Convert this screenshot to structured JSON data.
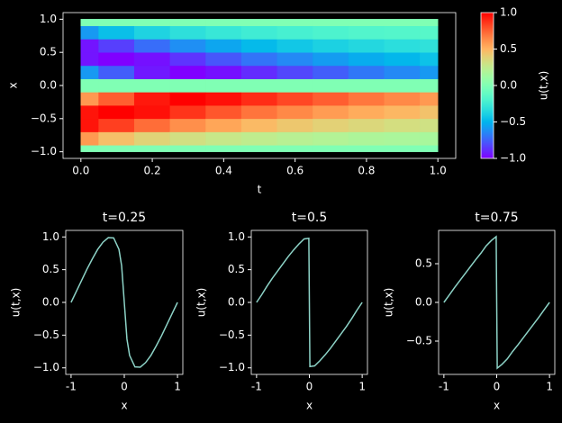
{
  "chart_data": [
    {
      "type": "heatmap",
      "xlabel": "t",
      "ylabel": "x",
      "colormap": "rainbow",
      "x": [
        0,
        0.1,
        0.2,
        0.3,
        0.4,
        0.5,
        0.6,
        0.7,
        0.8,
        0.9,
        1.0
      ],
      "y": [
        -1,
        -0.8,
        -0.6,
        -0.4,
        -0.2,
        0,
        0.2,
        0.4,
        0.6,
        0.8,
        1
      ],
      "values": [
        [
          0,
          0.59,
          0.95,
          0.95,
          0.59,
          0,
          -0.59,
          -0.95,
          -0.95,
          -0.59,
          0
        ],
        [
          0,
          0.46,
          0.84,
          1,
          0.76,
          0,
          -0.76,
          -1,
          -0.84,
          -0.46,
          0
        ],
        [
          0,
          0.38,
          0.72,
          0.96,
          0.94,
          0,
          -0.94,
          -0.96,
          -0.72,
          -0.38,
          0
        ],
        [
          0,
          0.32,
          0.62,
          0.87,
          1,
          0,
          -1,
          -0.87,
          -0.62,
          -0.32,
          0
        ],
        [
          0,
          0.28,
          0.55,
          0.78,
          0.96,
          0,
          -0.96,
          -0.78,
          -0.55,
          -0.28,
          0
        ],
        [
          0,
          0.25,
          0.48,
          0.7,
          0.89,
          0,
          -0.89,
          -0.7,
          -0.48,
          -0.25,
          0
        ],
        [
          0,
          0.22,
          0.43,
          0.64,
          0.82,
          0,
          -0.82,
          -0.64,
          -0.43,
          -0.22,
          0
        ],
        [
          0,
          0.2,
          0.39,
          0.58,
          0.76,
          0,
          -0.76,
          -0.58,
          -0.39,
          -0.2,
          0
        ],
        [
          0,
          0.18,
          0.36,
          0.53,
          0.69,
          0,
          -0.69,
          -0.53,
          -0.36,
          -0.18,
          0
        ],
        [
          0,
          0.17,
          0.33,
          0.49,
          0.64,
          0,
          -0.64,
          -0.49,
          -0.33,
          -0.17,
          0
        ],
        [
          0,
          0.16,
          0.31,
          0.45,
          0.59,
          0,
          -0.59,
          -0.45,
          -0.31,
          -0.16,
          0
        ]
      ],
      "xlim": [
        -0.05,
        1.05
      ],
      "xticks": [
        {
          "value": 0,
          "label": "0.0"
        },
        {
          "value": 0.2,
          "label": "0.2"
        },
        {
          "value": 0.4,
          "label": "0.4"
        },
        {
          "value": 0.6,
          "label": "0.6"
        },
        {
          "value": 0.8,
          "label": "0.8"
        },
        {
          "value": 1,
          "label": "1.0"
        }
      ],
      "ylim": [
        -1.1,
        1.1
      ],
      "yticks": [
        {
          "value": -1,
          "label": "−1.0"
        },
        {
          "value": -0.5,
          "label": "−0.5"
        },
        {
          "value": 0,
          "label": "0.0"
        },
        {
          "value": 0.5,
          "label": "0.5"
        },
        {
          "value": 1,
          "label": "1.0"
        }
      ],
      "colorbar": {
        "label": "u(t,x)",
        "lim": [
          -1,
          1
        ],
        "ticks": [
          {
            "value": -1,
            "label": "−1.0"
          },
          {
            "value": -0.5,
            "label": "−0.5"
          },
          {
            "value": 0,
            "label": "0.0"
          },
          {
            "value": 0.5,
            "label": "0.5"
          },
          {
            "value": 1,
            "label": "1.0"
          }
        ]
      }
    },
    {
      "type": "line",
      "title": "t=0.25",
      "xlabel": "x",
      "ylabel": "u(t,x)",
      "color": "#8dd3c7",
      "x": [
        -1,
        -0.9,
        -0.8,
        -0.7,
        -0.6,
        -0.5,
        -0.4,
        -0.3,
        -0.2,
        -0.1,
        -0.05,
        0,
        0.05,
        0.1,
        0.2,
        0.3,
        0.4,
        0.5,
        0.6,
        0.7,
        0.8,
        0.9,
        1
      ],
      "values": [
        0,
        0.17,
        0.34,
        0.51,
        0.665,
        0.81,
        0.92,
        0.99,
        0.985,
        0.81,
        0.56,
        0,
        -0.56,
        -0.81,
        -0.985,
        -0.99,
        -0.92,
        -0.81,
        -0.665,
        -0.51,
        -0.34,
        -0.17,
        0
      ],
      "xlim": [
        -1.1,
        1.1
      ],
      "xticks": [
        -1,
        0,
        1
      ],
      "ylim": [
        -1.1,
        1.1
      ],
      "yticks": [
        {
          "value": -1,
          "label": "−1.0"
        },
        {
          "value": -0.5,
          "label": "−0.5"
        },
        {
          "value": 0,
          "label": "0.0"
        },
        {
          "value": 0.5,
          "label": "0.5"
        },
        {
          "value": 1,
          "label": "1.0"
        }
      ]
    },
    {
      "type": "line",
      "title": "t=0.5",
      "xlabel": "x",
      "ylabel": "u(t,x)",
      "color": "#8dd3c7",
      "x": [
        -1,
        -0.9,
        -0.8,
        -0.7,
        -0.6,
        -0.5,
        -0.4,
        -0.3,
        -0.2,
        -0.1,
        -0.01,
        0,
        0.01,
        0.1,
        0.2,
        0.3,
        0.4,
        0.5,
        0.6,
        0.7,
        0.8,
        0.9,
        1
      ],
      "values": [
        0,
        0.12,
        0.25,
        0.37,
        0.48,
        0.59,
        0.7,
        0.8,
        0.89,
        0.97,
        0.98,
        0,
        -0.98,
        -0.97,
        -0.89,
        -0.8,
        -0.7,
        -0.59,
        -0.48,
        -0.37,
        -0.25,
        -0.12,
        0
      ],
      "xlim": [
        -1.1,
        1.1
      ],
      "xticks": [
        -1,
        0,
        1
      ],
      "ylim": [
        -1.1,
        1.1
      ],
      "yticks": [
        {
          "value": -1,
          "label": "−1.0"
        },
        {
          "value": -0.5,
          "label": "−0.5"
        },
        {
          "value": 0,
          "label": "0.0"
        },
        {
          "value": 0.5,
          "label": "0.5"
        },
        {
          "value": 1,
          "label": "1.0"
        }
      ]
    },
    {
      "type": "line",
      "title": "t=0.75",
      "xlabel": "x",
      "ylabel": "u(t,x)",
      "color": "#8dd3c7",
      "x": [
        -1,
        -0.9,
        -0.8,
        -0.7,
        -0.6,
        -0.5,
        -0.4,
        -0.3,
        -0.2,
        -0.1,
        -0.01,
        0,
        0.01,
        0.1,
        0.2,
        0.3,
        0.4,
        0.5,
        0.6,
        0.7,
        0.8,
        0.9,
        1
      ],
      "values": [
        0,
        0.094,
        0.19,
        0.28,
        0.37,
        0.46,
        0.55,
        0.635,
        0.73,
        0.8,
        0.85,
        0,
        -0.85,
        -0.8,
        -0.73,
        -0.635,
        -0.55,
        -0.46,
        -0.37,
        -0.28,
        -0.19,
        -0.094,
        0
      ],
      "xlim": [
        -1.1,
        1.1
      ],
      "xticks": [
        -1,
        0,
        1
      ],
      "ylim": [
        -0.93,
        0.93
      ],
      "yticks": [
        {
          "value": -0.5,
          "label": "−0.5"
        },
        {
          "value": 0,
          "label": "0.0"
        },
        {
          "value": 0.5,
          "label": "0.5"
        }
      ]
    }
  ]
}
